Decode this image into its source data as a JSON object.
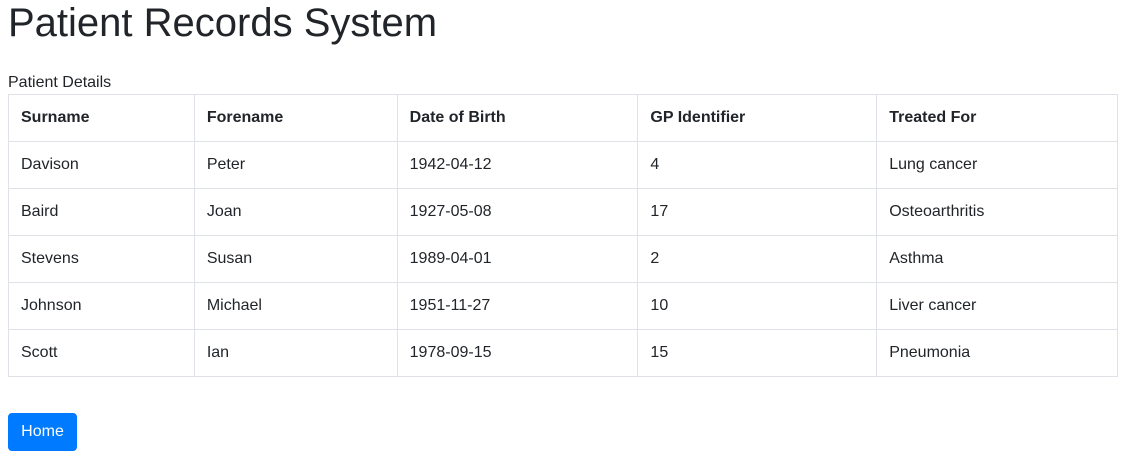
{
  "page": {
    "title": "Patient Records System"
  },
  "table": {
    "caption": "Patient Details",
    "headers": [
      "Surname",
      "Forename",
      "Date of Birth",
      "GP Identifier",
      "Treated For"
    ],
    "rows": [
      [
        "Davison",
        "Peter",
        "1942-04-12",
        "4",
        "Lung cancer"
      ],
      [
        "Baird",
        "Joan",
        "1927-05-08",
        "17",
        "Osteoarthritis"
      ],
      [
        "Stevens",
        "Susan",
        "1989-04-01",
        "2",
        "Asthma"
      ],
      [
        "Johnson",
        "Michael",
        "1951-11-27",
        "10",
        "Liver cancer"
      ],
      [
        "Scott",
        "Ian",
        "1978-09-15",
        "15",
        "Pneumonia"
      ]
    ]
  },
  "actions": {
    "home_label": "Home"
  },
  "colors": {
    "primary": "#007bff",
    "text": "#212529",
    "border": "#dee2e6"
  }
}
